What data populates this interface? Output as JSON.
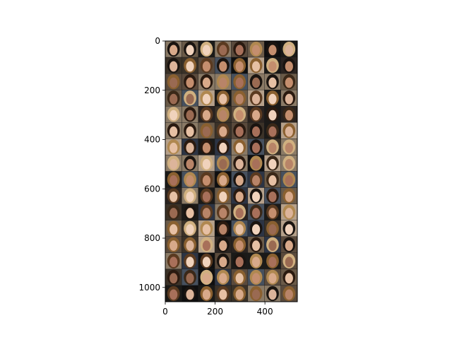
{
  "chart_data": {
    "type": "image",
    "title": "",
    "xlabel": "",
    "ylabel": "",
    "xlim": [
      0,
      530
    ],
    "ylim": [
      1058,
      0
    ],
    "xticks": [
      0,
      200,
      400
    ],
    "yticks": [
      0,
      200,
      400,
      600,
      800,
      1000
    ],
    "grid": false,
    "legend": "none",
    "grid_rows": 16,
    "grid_cols": 8
  },
  "colors": {
    "background": "#ffffff",
    "axes": "#000000",
    "tile_border": "#1a1a1a"
  }
}
